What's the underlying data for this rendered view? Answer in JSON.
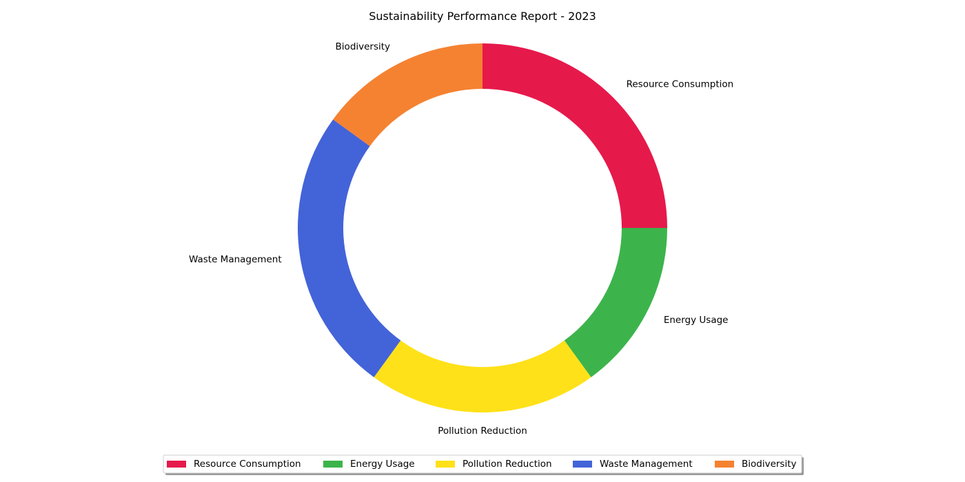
{
  "chart_data": {
    "type": "pie",
    "variant": "donut",
    "title": "Sustainability Performance Report - 2023",
    "categories": [
      "Resource Consumption",
      "Energy Usage",
      "Pollution Reduction",
      "Waste Management",
      "Biodiversity"
    ],
    "values": [
      25,
      15,
      20,
      25,
      15
    ],
    "colors": [
      "#e6194b",
      "#3cb44b",
      "#ffe119",
      "#4363d8",
      "#f58231"
    ],
    "start_angle_deg": 90,
    "direction": "clockwise",
    "legend": {
      "position": "bottom-center",
      "columns": 5,
      "shadow": true
    }
  }
}
